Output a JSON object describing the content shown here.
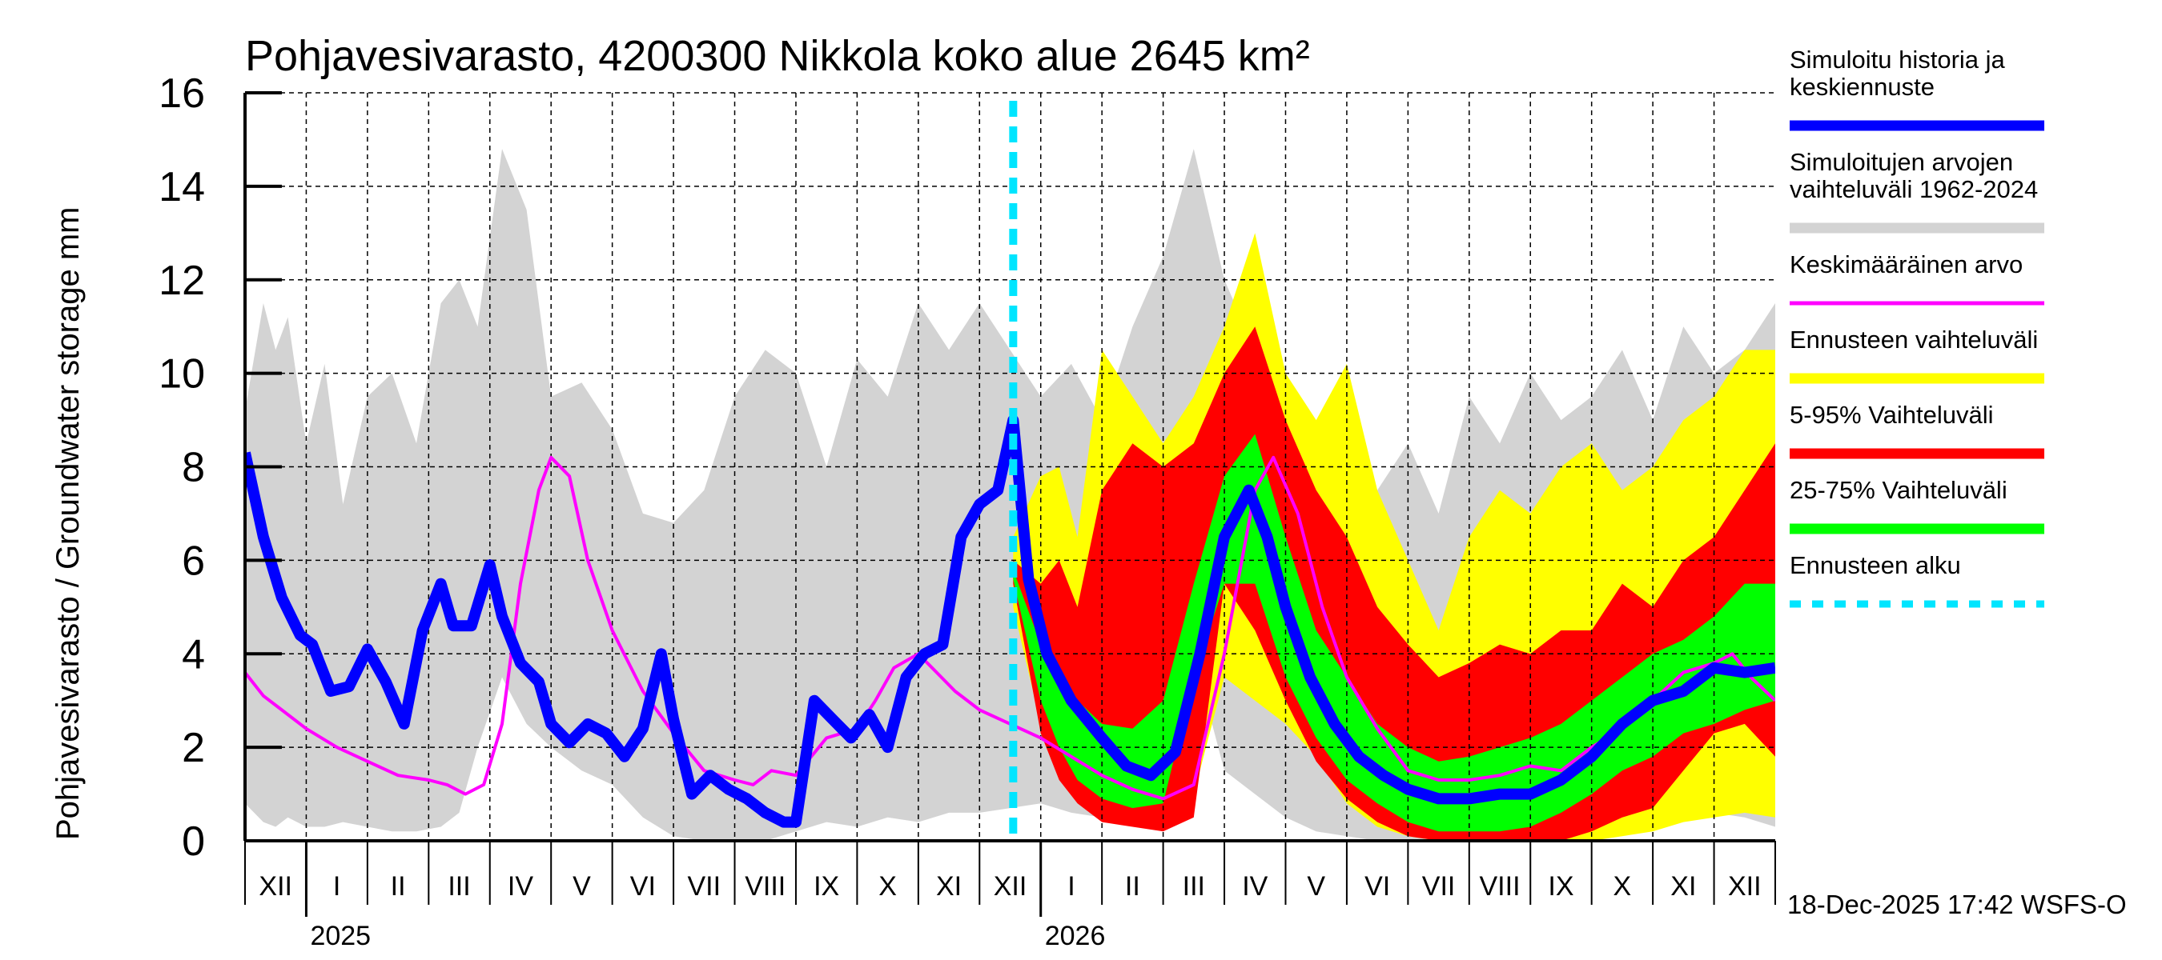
{
  "chart_data": {
    "type": "area",
    "title": "Pohjavesivarasto, 4200300 Nikkola koko alue 2645 km²",
    "ylabel": "Pohjavesivarasto / Groundwater storage   mm",
    "xlabel": "",
    "ylim": [
      0,
      16
    ],
    "yticks": [
      0,
      2,
      4,
      6,
      8,
      10,
      12,
      14,
      16
    ],
    "grid": true,
    "x_unit": "months since 1-Dec-2024",
    "xlim": [
      0,
      25
    ],
    "month_labels": [
      "XII",
      "I",
      "II",
      "III",
      "IV",
      "V",
      "VI",
      "VII",
      "VIII",
      "IX",
      "X",
      "XI",
      "XII",
      "I",
      "II",
      "III",
      "IV",
      "V",
      "VI",
      "VII",
      "VIII",
      "IX",
      "X",
      "XI",
      "XII"
    ],
    "year_labels": [
      {
        "label": "2025",
        "x": 1
      },
      {
        "label": "2026",
        "x": 13
      }
    ],
    "forecast_start_x": 12.55,
    "timestamp": "18-Dec-2025 17:42 WSFS-O",
    "legend": [
      {
        "label": "Simuloitu historia ja|keskiennuste",
        "color": "#0000ff",
        "style": "solid-thick"
      },
      {
        "label": "Simuloitujen arvojen|vaihteluväli 1962-2024",
        "color": "#d3d3d3",
        "style": "solid-thick"
      },
      {
        "label": "Keskimääräinen arvo",
        "color": "#ff00ff",
        "style": "solid-thin"
      },
      {
        "label": "Ennusteen vaihteluväli",
        "color": "#ffff00",
        "style": "solid-thick"
      },
      {
        "label": "5-95% Vaihteluväli",
        "color": "#ff0000",
        "style": "solid-thick"
      },
      {
        "label": "25-75% Vaihteluväli",
        "color": "#00ff00",
        "style": "solid-thick"
      },
      {
        "label": "Ennusteen alku",
        "color": "#00e5ff",
        "style": "dashed"
      }
    ],
    "series": [
      {
        "name": "Simuloitujen arvojen vaihteluväli 1962-2024",
        "type": "band",
        "color": "#d3d3d3",
        "x": [
          0,
          0.3,
          0.5,
          0.7,
          1.0,
          1.3,
          1.6,
          2.0,
          2.4,
          2.8,
          3.2,
          3.5,
          3.8,
          4.2,
          4.6,
          5.0,
          5.5,
          6.0,
          6.5,
          7.0,
          7.5,
          8.0,
          8.5,
          9.0,
          9.5,
          10.0,
          10.5,
          11.0,
          11.5,
          12.0,
          12.5,
          13.0,
          13.5,
          14.0,
          14.5,
          15.0,
          15.5,
          16.0,
          16.5,
          17.0,
          17.5,
          18.0,
          18.5,
          19.0,
          19.5,
          20.0,
          20.5,
          21.0,
          21.5,
          22.0,
          22.5,
          23.0,
          23.5,
          24.0,
          24.5,
          25.0
        ],
        "high": [
          9.2,
          11.5,
          10.5,
          11.2,
          8.5,
          10.2,
          7.2,
          9.5,
          10.0,
          8.5,
          11.5,
          12.0,
          11.0,
          14.8,
          13.5,
          9.5,
          9.8,
          8.8,
          7.0,
          6.8,
          7.5,
          9.5,
          10.5,
          10.0,
          8.0,
          10.3,
          9.5,
          11.5,
          10.5,
          11.5,
          10.5,
          9.5,
          10.2,
          9.0,
          11.0,
          12.5,
          14.8,
          12.0,
          10.5,
          9.8,
          8.5,
          7.0,
          7.5,
          8.5,
          7.0,
          9.5,
          8.5,
          10.0,
          9.0,
          9.5,
          10.5,
          9.0,
          11.0,
          10.0,
          10.5,
          11.5
        ],
        "low": [
          0.8,
          0.4,
          0.3,
          0.5,
          0.3,
          0.3,
          0.4,
          0.3,
          0.2,
          0.2,
          0.3,
          0.6,
          2.0,
          3.5,
          2.5,
          2.0,
          1.5,
          1.2,
          0.5,
          0.1,
          0.0,
          0.0,
          0.0,
          0.2,
          0.4,
          0.3,
          0.5,
          0.4,
          0.6,
          0.6,
          0.7,
          0.8,
          0.6,
          0.5,
          0.4,
          0.5,
          4.0,
          1.5,
          1.0,
          0.5,
          0.2,
          0.1,
          0.0,
          0.0,
          0.0,
          0.0,
          0.1,
          0.3,
          0.5,
          0.6,
          0.5,
          0.6,
          0.7,
          0.6,
          0.5,
          0.3
        ]
      },
      {
        "name": "Ennusteen vaihteluväli",
        "type": "band",
        "color": "#ffff00",
        "x": [
          12.55,
          13.0,
          13.3,
          13.6,
          14.0,
          14.5,
          15.0,
          15.5,
          16.0,
          16.5,
          17.0,
          17.5,
          18.0,
          18.5,
          19.0,
          19.5,
          20.0,
          20.5,
          21.0,
          21.5,
          22.0,
          22.5,
          23.0,
          23.5,
          24.0,
          24.5,
          25.0
        ],
        "high": [
          6.5,
          7.8,
          8.0,
          6.5,
          10.5,
          9.5,
          8.5,
          9.5,
          11.0,
          13.0,
          10.0,
          9.0,
          10.2,
          7.5,
          6.0,
          4.5,
          6.5,
          7.5,
          7.0,
          8.0,
          8.5,
          7.5,
          8.0,
          9.0,
          9.5,
          10.5,
          10.5
        ],
        "low": [
          5.0,
          2.5,
          1.5,
          0.9,
          0.6,
          0.4,
          0.3,
          1.0,
          3.5,
          3.0,
          2.5,
          1.8,
          0.8,
          0.3,
          0.1,
          0.0,
          0.0,
          0.0,
          0.0,
          0.0,
          0.0,
          0.1,
          0.2,
          0.4,
          0.5,
          0.6,
          0.5
        ]
      },
      {
        "name": "5-95% Vaihteluväli",
        "type": "band",
        "color": "#ff0000",
        "x": [
          12.55,
          13.0,
          13.3,
          13.6,
          14.0,
          14.5,
          15.0,
          15.5,
          16.0,
          16.5,
          17.0,
          17.5,
          18.0,
          18.5,
          19.0,
          19.5,
          20.0,
          20.5,
          21.0,
          21.5,
          22.0,
          22.5,
          23.0,
          23.5,
          24.0,
          24.5,
          25.0
        ],
        "high": [
          6.0,
          5.5,
          6.0,
          5.0,
          7.5,
          8.5,
          8.0,
          8.5,
          10.0,
          11.0,
          9.0,
          7.5,
          6.5,
          5.0,
          4.2,
          3.5,
          3.8,
          4.2,
          4.0,
          4.5,
          4.5,
          5.5,
          5.0,
          6.0,
          6.5,
          7.5,
          8.5
        ],
        "low": [
          5.5,
          2.3,
          1.3,
          0.8,
          0.4,
          0.3,
          0.2,
          0.5,
          5.5,
          4.5,
          3.0,
          1.7,
          0.9,
          0.4,
          0.1,
          0.0,
          0.0,
          0.0,
          0.0,
          0.0,
          0.2,
          0.5,
          0.7,
          1.5,
          2.3,
          2.5,
          1.8
        ]
      },
      {
        "name": "25-75% Vaihteluväli",
        "type": "band",
        "color": "#00ff00",
        "x": [
          12.55,
          13.0,
          13.3,
          13.6,
          14.0,
          14.5,
          15.0,
          15.5,
          16.0,
          16.5,
          17.0,
          17.5,
          18.0,
          18.5,
          19.0,
          19.5,
          20.0,
          20.5,
          21.0,
          21.5,
          22.0,
          22.5,
          23.0,
          23.5,
          24.0,
          24.5,
          25.0
        ],
        "high": [
          5.8,
          4.2,
          3.5,
          3.0,
          2.5,
          2.4,
          3.0,
          5.5,
          7.8,
          8.7,
          6.5,
          4.5,
          3.5,
          2.5,
          2.0,
          1.7,
          1.8,
          2.0,
          2.2,
          2.5,
          3.0,
          3.5,
          4.0,
          4.3,
          4.8,
          5.5,
          5.5
        ],
        "low": [
          5.6,
          3.0,
          2.0,
          1.3,
          0.9,
          0.7,
          0.8,
          3.5,
          5.5,
          5.5,
          3.5,
          2.2,
          1.3,
          0.8,
          0.4,
          0.2,
          0.2,
          0.2,
          0.3,
          0.6,
          1.0,
          1.5,
          1.8,
          2.3,
          2.5,
          2.8,
          3.0
        ]
      },
      {
        "name": "Keskimääräinen arvo",
        "type": "line",
        "color": "#ff00ff",
        "x": [
          0,
          0.3,
          0.6,
          1.0,
          1.5,
          2.0,
          2.5,
          3.0,
          3.3,
          3.6,
          3.9,
          4.2,
          4.5,
          4.8,
          5.0,
          5.3,
          5.6,
          6.0,
          6.5,
          7.0,
          7.5,
          8.0,
          8.3,
          8.6,
          9.0,
          9.5,
          10.0,
          10.3,
          10.6,
          11.0,
          11.3,
          11.6,
          12.0,
          12.5,
          13.0,
          13.5,
          14.0,
          14.5,
          15.0,
          15.5,
          16.0,
          16.5,
          16.8,
          17.2,
          17.6,
          18.0,
          18.5,
          19.0,
          19.5,
          20.0,
          20.5,
          21.0,
          21.5,
          22.0,
          22.5,
          23.0,
          23.5,
          24.0,
          24.3,
          24.6,
          25.0
        ],
        "y": [
          3.6,
          3.1,
          2.8,
          2.4,
          2.0,
          1.7,
          1.4,
          1.3,
          1.2,
          1.0,
          1.2,
          2.5,
          5.5,
          7.5,
          8.2,
          7.8,
          6.0,
          4.5,
          3.2,
          2.3,
          1.5,
          1.3,
          1.2,
          1.5,
          1.4,
          2.2,
          2.4,
          3.0,
          3.7,
          4.0,
          3.6,
          3.2,
          2.8,
          2.5,
          2.2,
          1.8,
          1.4,
          1.1,
          0.9,
          1.2,
          4.0,
          7.5,
          8.2,
          7.0,
          5.0,
          3.5,
          2.4,
          1.5,
          1.3,
          1.3,
          1.4,
          1.6,
          1.5,
          2.0,
          2.4,
          3.0,
          3.6,
          3.8,
          4.0,
          3.5,
          3.0
        ]
      },
      {
        "name": "Simuloitu historia ja keskiennuste",
        "type": "line",
        "color": "#0000ff",
        "x": [
          0,
          0.3,
          0.6,
          0.9,
          1.1,
          1.4,
          1.7,
          2.0,
          2.3,
          2.6,
          2.9,
          3.2,
          3.4,
          3.7,
          4.0,
          4.2,
          4.5,
          4.8,
          5.0,
          5.3,
          5.6,
          5.9,
          6.2,
          6.5,
          6.8,
          7.0,
          7.3,
          7.6,
          7.9,
          8.2,
          8.5,
          8.8,
          9.0,
          9.3,
          9.6,
          9.9,
          10.2,
          10.5,
          10.8,
          11.1,
          11.4,
          11.7,
          12.0,
          12.3,
          12.55,
          12.8,
          13.1,
          13.5,
          14.0,
          14.4,
          14.8,
          15.2,
          15.6,
          16.0,
          16.4,
          16.7,
          17.0,
          17.4,
          17.8,
          18.2,
          18.6,
          19.0,
          19.5,
          20.0,
          20.5,
          21.0,
          21.5,
          22.0,
          22.5,
          23.0,
          23.5,
          24.0,
          24.5,
          25.0
        ],
        "y": [
          8.3,
          6.5,
          5.2,
          4.4,
          4.2,
          3.2,
          3.3,
          4.1,
          3.4,
          2.5,
          4.5,
          5.5,
          4.6,
          4.6,
          5.9,
          4.8,
          3.8,
          3.4,
          2.5,
          2.1,
          2.5,
          2.3,
          1.8,
          2.4,
          4.0,
          2.6,
          1.0,
          1.4,
          1.1,
          0.9,
          0.6,
          0.4,
          0.4,
          3.0,
          2.6,
          2.2,
          2.7,
          2.0,
          3.5,
          4.0,
          4.2,
          6.5,
          7.2,
          7.5,
          9.0,
          5.6,
          4.0,
          3.0,
          2.2,
          1.6,
          1.4,
          1.9,
          4.0,
          6.5,
          7.5,
          6.5,
          5.0,
          3.5,
          2.5,
          1.8,
          1.4,
          1.1,
          0.9,
          0.9,
          1.0,
          1.0,
          1.3,
          1.8,
          2.5,
          3.0,
          3.2,
          3.7,
          3.6,
          3.7
        ]
      }
    ]
  }
}
